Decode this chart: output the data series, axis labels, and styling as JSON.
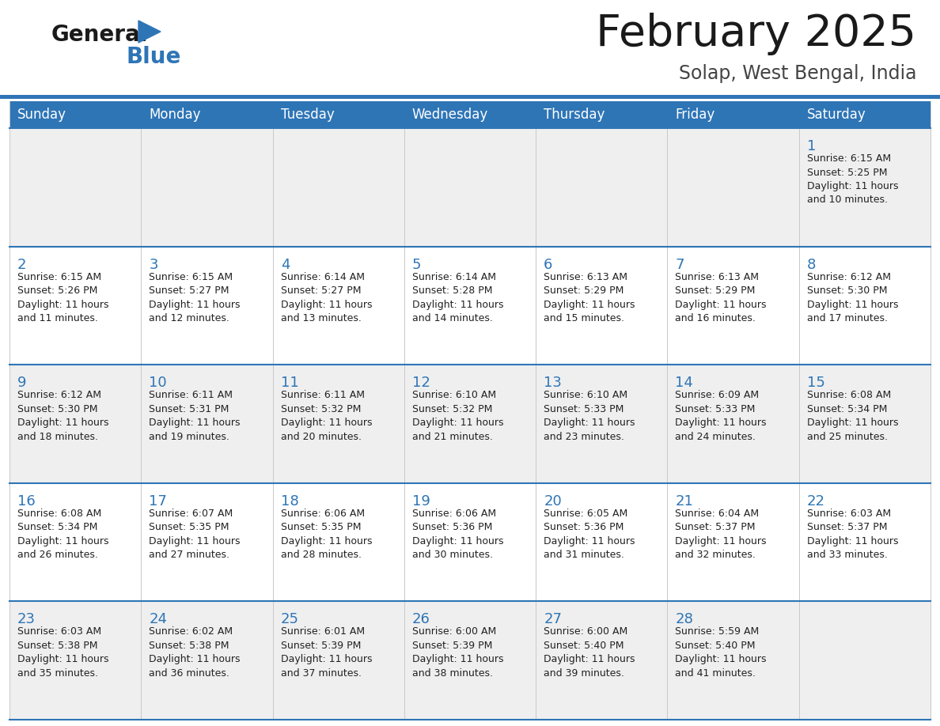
{
  "title": "February 2025",
  "subtitle": "Solap, West Bengal, India",
  "header_color": "#2E75B6",
  "header_text_color": "#FFFFFF",
  "day_names": [
    "Sunday",
    "Monday",
    "Tuesday",
    "Wednesday",
    "Thursday",
    "Friday",
    "Saturday"
  ],
  "bg_color": "#FFFFFF",
  "cell_bg_light": "#EFEFEF",
  "cell_bg_white": "#FFFFFF",
  "title_color": "#1A1A1A",
  "subtitle_color": "#444444",
  "day_num_color": "#2E75B6",
  "cell_text_color": "#222222",
  "row_border_color": "#2E75B6",
  "logo_text_color": "#1A1A1A",
  "logo_blue_color": "#2E75B6",
  "calendar_data": [
    [
      null,
      null,
      null,
      null,
      null,
      null,
      {
        "day": 1,
        "sunrise": "6:15 AM",
        "sunset": "5:25 PM",
        "daylight": "11 hours",
        "daylight2": "and 10 minutes."
      }
    ],
    [
      {
        "day": 2,
        "sunrise": "6:15 AM",
        "sunset": "5:26 PM",
        "daylight": "11 hours",
        "daylight2": "and 11 minutes."
      },
      {
        "day": 3,
        "sunrise": "6:15 AM",
        "sunset": "5:27 PM",
        "daylight": "11 hours",
        "daylight2": "and 12 minutes."
      },
      {
        "day": 4,
        "sunrise": "6:14 AM",
        "sunset": "5:27 PM",
        "daylight": "11 hours",
        "daylight2": "and 13 minutes."
      },
      {
        "day": 5,
        "sunrise": "6:14 AM",
        "sunset": "5:28 PM",
        "daylight": "11 hours",
        "daylight2": "and 14 minutes."
      },
      {
        "day": 6,
        "sunrise": "6:13 AM",
        "sunset": "5:29 PM",
        "daylight": "11 hours",
        "daylight2": "and 15 minutes."
      },
      {
        "day": 7,
        "sunrise": "6:13 AM",
        "sunset": "5:29 PM",
        "daylight": "11 hours",
        "daylight2": "and 16 minutes."
      },
      {
        "day": 8,
        "sunrise": "6:12 AM",
        "sunset": "5:30 PM",
        "daylight": "11 hours",
        "daylight2": "and 17 minutes."
      }
    ],
    [
      {
        "day": 9,
        "sunrise": "6:12 AM",
        "sunset": "5:30 PM",
        "daylight": "11 hours",
        "daylight2": "and 18 minutes."
      },
      {
        "day": 10,
        "sunrise": "6:11 AM",
        "sunset": "5:31 PM",
        "daylight": "11 hours",
        "daylight2": "and 19 minutes."
      },
      {
        "day": 11,
        "sunrise": "6:11 AM",
        "sunset": "5:32 PM",
        "daylight": "11 hours",
        "daylight2": "and 20 minutes."
      },
      {
        "day": 12,
        "sunrise": "6:10 AM",
        "sunset": "5:32 PM",
        "daylight": "11 hours",
        "daylight2": "and 21 minutes."
      },
      {
        "day": 13,
        "sunrise": "6:10 AM",
        "sunset": "5:33 PM",
        "daylight": "11 hours",
        "daylight2": "and 23 minutes."
      },
      {
        "day": 14,
        "sunrise": "6:09 AM",
        "sunset": "5:33 PM",
        "daylight": "11 hours",
        "daylight2": "and 24 minutes."
      },
      {
        "day": 15,
        "sunrise": "6:08 AM",
        "sunset": "5:34 PM",
        "daylight": "11 hours",
        "daylight2": "and 25 minutes."
      }
    ],
    [
      {
        "day": 16,
        "sunrise": "6:08 AM",
        "sunset": "5:34 PM",
        "daylight": "11 hours",
        "daylight2": "and 26 minutes."
      },
      {
        "day": 17,
        "sunrise": "6:07 AM",
        "sunset": "5:35 PM",
        "daylight": "11 hours",
        "daylight2": "and 27 minutes."
      },
      {
        "day": 18,
        "sunrise": "6:06 AM",
        "sunset": "5:35 PM",
        "daylight": "11 hours",
        "daylight2": "and 28 minutes."
      },
      {
        "day": 19,
        "sunrise": "6:06 AM",
        "sunset": "5:36 PM",
        "daylight": "11 hours",
        "daylight2": "and 30 minutes."
      },
      {
        "day": 20,
        "sunrise": "6:05 AM",
        "sunset": "5:36 PM",
        "daylight": "11 hours",
        "daylight2": "and 31 minutes."
      },
      {
        "day": 21,
        "sunrise": "6:04 AM",
        "sunset": "5:37 PM",
        "daylight": "11 hours",
        "daylight2": "and 32 minutes."
      },
      {
        "day": 22,
        "sunrise": "6:03 AM",
        "sunset": "5:37 PM",
        "daylight": "11 hours",
        "daylight2": "and 33 minutes."
      }
    ],
    [
      {
        "day": 23,
        "sunrise": "6:03 AM",
        "sunset": "5:38 PM",
        "daylight": "11 hours",
        "daylight2": "and 35 minutes."
      },
      {
        "day": 24,
        "sunrise": "6:02 AM",
        "sunset": "5:38 PM",
        "daylight": "11 hours",
        "daylight2": "and 36 minutes."
      },
      {
        "day": 25,
        "sunrise": "6:01 AM",
        "sunset": "5:39 PM",
        "daylight": "11 hours",
        "daylight2": "and 37 minutes."
      },
      {
        "day": 26,
        "sunrise": "6:00 AM",
        "sunset": "5:39 PM",
        "daylight": "11 hours",
        "daylight2": "and 38 minutes."
      },
      {
        "day": 27,
        "sunrise": "6:00 AM",
        "sunset": "5:40 PM",
        "daylight": "11 hours",
        "daylight2": "and 39 minutes."
      },
      {
        "day": 28,
        "sunrise": "5:59 AM",
        "sunset": "5:40 PM",
        "daylight": "11 hours",
        "daylight2": "and 41 minutes."
      },
      null
    ]
  ]
}
